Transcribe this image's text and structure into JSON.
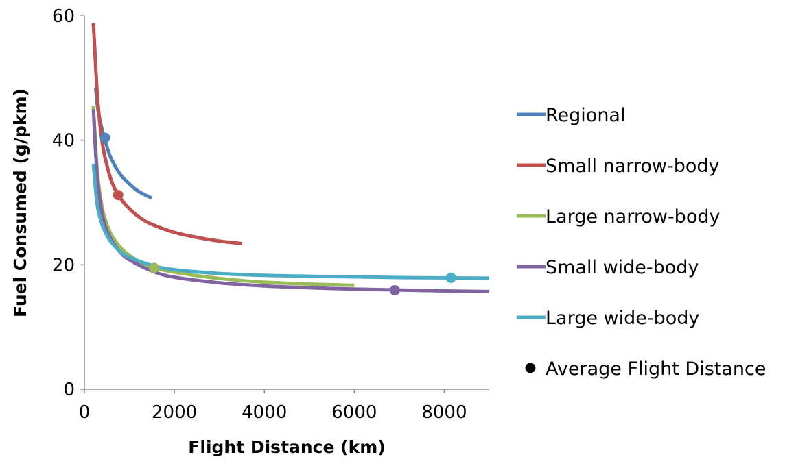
{
  "chart_data": {
    "type": "line",
    "title": "",
    "xlabel": "Flight Distance (km)",
    "ylabel": "Fuel Consumed (g/pkm)",
    "xlim": [
      0,
      9000
    ],
    "ylim": [
      0,
      60
    ],
    "x_ticks": [
      "0",
      "2000",
      "4000",
      "6000",
      "8000"
    ],
    "x_tick_values": [
      0,
      2000,
      4000,
      6000,
      8000
    ],
    "y_ticks": [
      "0",
      "20",
      "40",
      "60"
    ],
    "y_tick_values": [
      0,
      20,
      40,
      60
    ],
    "grid": false,
    "legend_position": "right",
    "series": [
      {
        "name": "Regional",
        "color": "#4f81bd",
        "x": [
          250,
          300,
          400,
          500,
          600,
          800,
          1000,
          1200,
          1500
        ],
        "y": [
          48.5,
          45.0,
          41.5,
          39.0,
          37.0,
          34.5,
          33.0,
          31.8,
          30.7
        ],
        "marker": {
          "x": 460,
          "y": 40.4
        }
      },
      {
        "name": "Small narrow-body",
        "color": "#c0504d",
        "x": [
          200,
          250,
          300,
          400,
          500,
          600,
          750,
          1000,
          1250,
          1500,
          2000,
          2500,
          3000,
          3500
        ],
        "y": [
          58.8,
          52.0,
          46.0,
          39.5,
          36.0,
          33.5,
          31.2,
          29.0,
          27.5,
          26.5,
          25.2,
          24.4,
          23.8,
          23.4
        ],
        "marker": {
          "x": 750,
          "y": 31.2
        }
      },
      {
        "name": "Large narrow-body",
        "color": "#9bbb59",
        "x": [
          200,
          250,
          300,
          400,
          500,
          600,
          800,
          1000,
          1250,
          1550,
          2000,
          3000,
          4000,
          5000,
          6000
        ],
        "y": [
          45.5,
          39.0,
          34.0,
          29.0,
          26.5,
          24.8,
          22.8,
          21.5,
          20.4,
          19.5,
          18.8,
          17.8,
          17.2,
          16.9,
          16.7
        ],
        "marker": {
          "x": 1550,
          "y": 19.5
        }
      },
      {
        "name": "Small wide-body",
        "color": "#8064a2",
        "x": [
          200,
          250,
          300,
          400,
          500,
          600,
          800,
          1000,
          1500,
          2000,
          3000,
          4000,
          5000,
          6000,
          7000,
          8000,
          9000
        ],
        "y": [
          45.0,
          38.0,
          33.0,
          28.0,
          25.5,
          24.0,
          22.0,
          20.8,
          19.0,
          18.0,
          17.1,
          16.6,
          16.3,
          16.1,
          15.95,
          15.8,
          15.7
        ],
        "marker": {
          "x": 6900,
          "y": 15.9
        }
      },
      {
        "name": "Large wide-body",
        "color": "#4bacc6",
        "x": [
          200,
          250,
          300,
          400,
          500,
          600,
          800,
          1000,
          1500,
          2000,
          3000,
          4000,
          5000,
          6000,
          7000,
          8000,
          9000
        ],
        "y": [
          36.2,
          32.0,
          29.0,
          26.3,
          24.7,
          23.6,
          22.1,
          21.2,
          19.9,
          19.2,
          18.6,
          18.3,
          18.15,
          18.05,
          17.95,
          17.9,
          17.85
        ],
        "marker": {
          "x": 8150,
          "y": 17.9
        }
      }
    ],
    "marker_legend": {
      "label": "Average Flight Distance",
      "color": "#000000"
    }
  }
}
